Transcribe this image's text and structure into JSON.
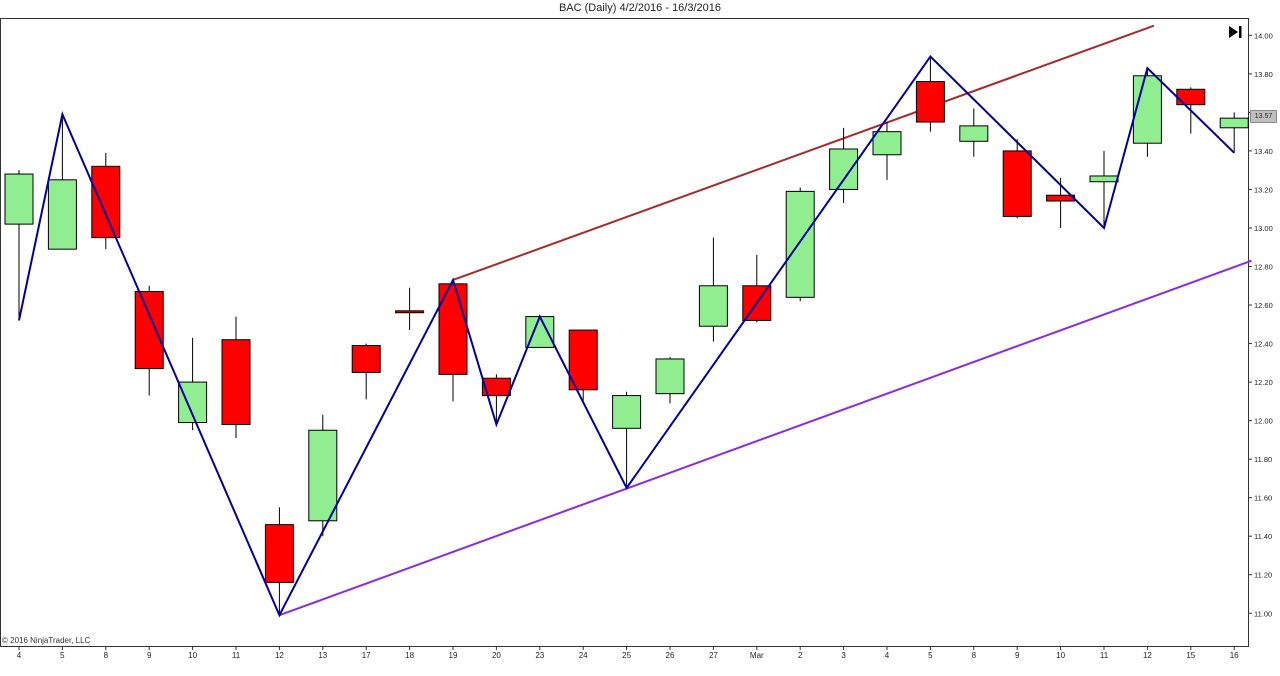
{
  "title": "BAC (Daily)  4/2/2016 - 16/3/2016",
  "copyright": "© 2016 NinjaTrader, LLC",
  "last_price_label": "13.57",
  "scroll_end_icon": "skip-to-end-icon",
  "colors": {
    "up_candle": "#90ee90",
    "down_candle": "#ff0000",
    "wick": "#000000",
    "zigzag": "#0000a0",
    "upper_channel": "#a52a2a",
    "lower_channel": "#8a2be2",
    "axis": "#333333"
  },
  "chart_data": {
    "type": "candlestick",
    "title": "BAC (Daily)  4/2/2016 - 16/3/2016",
    "x_tick_labels": [
      "4",
      "5",
      "8",
      "9",
      "10",
      "11",
      "12",
      "13",
      "17",
      "18",
      "19",
      "20",
      "23",
      "24",
      "25",
      "26",
      "27",
      "Mar",
      "2",
      "3",
      "4",
      "5",
      "8",
      "9",
      "10",
      "11",
      "12",
      "15",
      "16"
    ],
    "y_ticks": [
      "11.00",
      "11.20",
      "11.40",
      "11.60",
      "11.80",
      "12.00",
      "12.20",
      "12.40",
      "12.60",
      "12.80",
      "13.00",
      "13.20",
      "13.40",
      "13.60",
      "13.80",
      "14.00"
    ],
    "y_range": [
      10.83,
      14.09
    ],
    "grid": false,
    "candles": [
      {
        "x": "4",
        "open": 13.02,
        "high": 13.3,
        "low": 12.52,
        "close": 13.28
      },
      {
        "x": "5",
        "open": 12.89,
        "high": 13.59,
        "low": 12.89,
        "close": 13.25
      },
      {
        "x": "8",
        "open": 13.32,
        "high": 13.39,
        "low": 12.89,
        "close": 12.95
      },
      {
        "x": "9",
        "open": 12.67,
        "high": 12.7,
        "low": 12.13,
        "close": 12.27
      },
      {
        "x": "10",
        "open": 11.99,
        "high": 12.43,
        "low": 11.95,
        "close": 12.2
      },
      {
        "x": "11",
        "open": 12.42,
        "high": 12.54,
        "low": 11.91,
        "close": 11.98
      },
      {
        "x": "12",
        "open": 11.46,
        "high": 11.55,
        "low": 10.99,
        "close": 11.16
      },
      {
        "x": "13",
        "open": 11.48,
        "high": 12.03,
        "low": 11.4,
        "close": 11.95
      },
      {
        "x": "17",
        "open": 12.39,
        "high": 12.4,
        "low": 12.11,
        "close": 12.25
      },
      {
        "x": "18",
        "open": 12.57,
        "high": 12.69,
        "low": 12.47,
        "close": 12.56
      },
      {
        "x": "19",
        "open": 12.71,
        "high": 12.73,
        "low": 12.1,
        "close": 12.24
      },
      {
        "x": "20",
        "open": 12.22,
        "high": 12.24,
        "low": 11.98,
        "close": 12.13
      },
      {
        "x": "23",
        "open": 12.38,
        "high": 12.54,
        "low": 12.38,
        "close": 12.54
      },
      {
        "x": "24",
        "open": 12.47,
        "high": 12.47,
        "low": 12.1,
        "close": 12.16
      },
      {
        "x": "25",
        "open": 11.96,
        "high": 12.15,
        "low": 11.65,
        "close": 12.13
      },
      {
        "x": "26",
        "open": 12.14,
        "high": 12.33,
        "low": 12.09,
        "close": 12.32
      },
      {
        "x": "27",
        "open": 12.49,
        "high": 12.95,
        "low": 12.41,
        "close": 12.7
      },
      {
        "x": "Mar",
        "open": 12.7,
        "high": 12.86,
        "low": 12.51,
        "close": 12.52
      },
      {
        "x": "2",
        "open": 12.64,
        "high": 13.21,
        "low": 12.62,
        "close": 13.19
      },
      {
        "x": "3",
        "open": 13.2,
        "high": 13.52,
        "low": 13.13,
        "close": 13.41
      },
      {
        "x": "4",
        "open": 13.38,
        "high": 13.55,
        "low": 13.25,
        "close": 13.5
      },
      {
        "x": "5",
        "open": 13.76,
        "high": 13.89,
        "low": 13.5,
        "close": 13.55
      },
      {
        "x": "8",
        "open": 13.45,
        "high": 13.62,
        "low": 13.37,
        "close": 13.53
      },
      {
        "x": "9",
        "open": 13.4,
        "high": 13.46,
        "low": 13.05,
        "close": 13.06
      },
      {
        "x": "10",
        "open": 13.17,
        "high": 13.26,
        "low": 13.0,
        "close": 13.14
      },
      {
        "x": "11",
        "open": 13.24,
        "high": 13.4,
        "low": 13.0,
        "close": 13.27
      },
      {
        "x": "12",
        "open": 13.44,
        "high": 13.83,
        "low": 13.37,
        "close": 13.79
      },
      {
        "x": "15",
        "open": 13.72,
        "high": 13.73,
        "low": 13.49,
        "close": 13.64
      },
      {
        "x": "16",
        "open": 13.52,
        "high": 13.6,
        "low": 13.39,
        "close": 13.57
      }
    ],
    "zigzag": [
      {
        "index": 0,
        "price": 12.52
      },
      {
        "index": 1,
        "price": 13.59
      },
      {
        "index": 6,
        "price": 10.99
      },
      {
        "index": 10,
        "price": 12.73
      },
      {
        "index": 11,
        "price": 11.98
      },
      {
        "index": 12,
        "price": 12.54
      },
      {
        "index": 14,
        "price": 11.65
      },
      {
        "index": 21,
        "price": 13.89
      },
      {
        "index": 25,
        "price": 13.0
      },
      {
        "index": 26,
        "price": 13.83
      },
      {
        "index": 28,
        "price": 13.39
      }
    ],
    "channel_lines": [
      {
        "role": "upper",
        "from": {
          "index": 10,
          "price": 12.73
        },
        "to": {
          "index": 26.15,
          "price": 14.05
        }
      },
      {
        "role": "lower",
        "from": {
          "index": 6,
          "price": 10.99
        },
        "to": {
          "index": 28.4,
          "price": 12.83
        }
      }
    ],
    "last_price": 13.57
  }
}
